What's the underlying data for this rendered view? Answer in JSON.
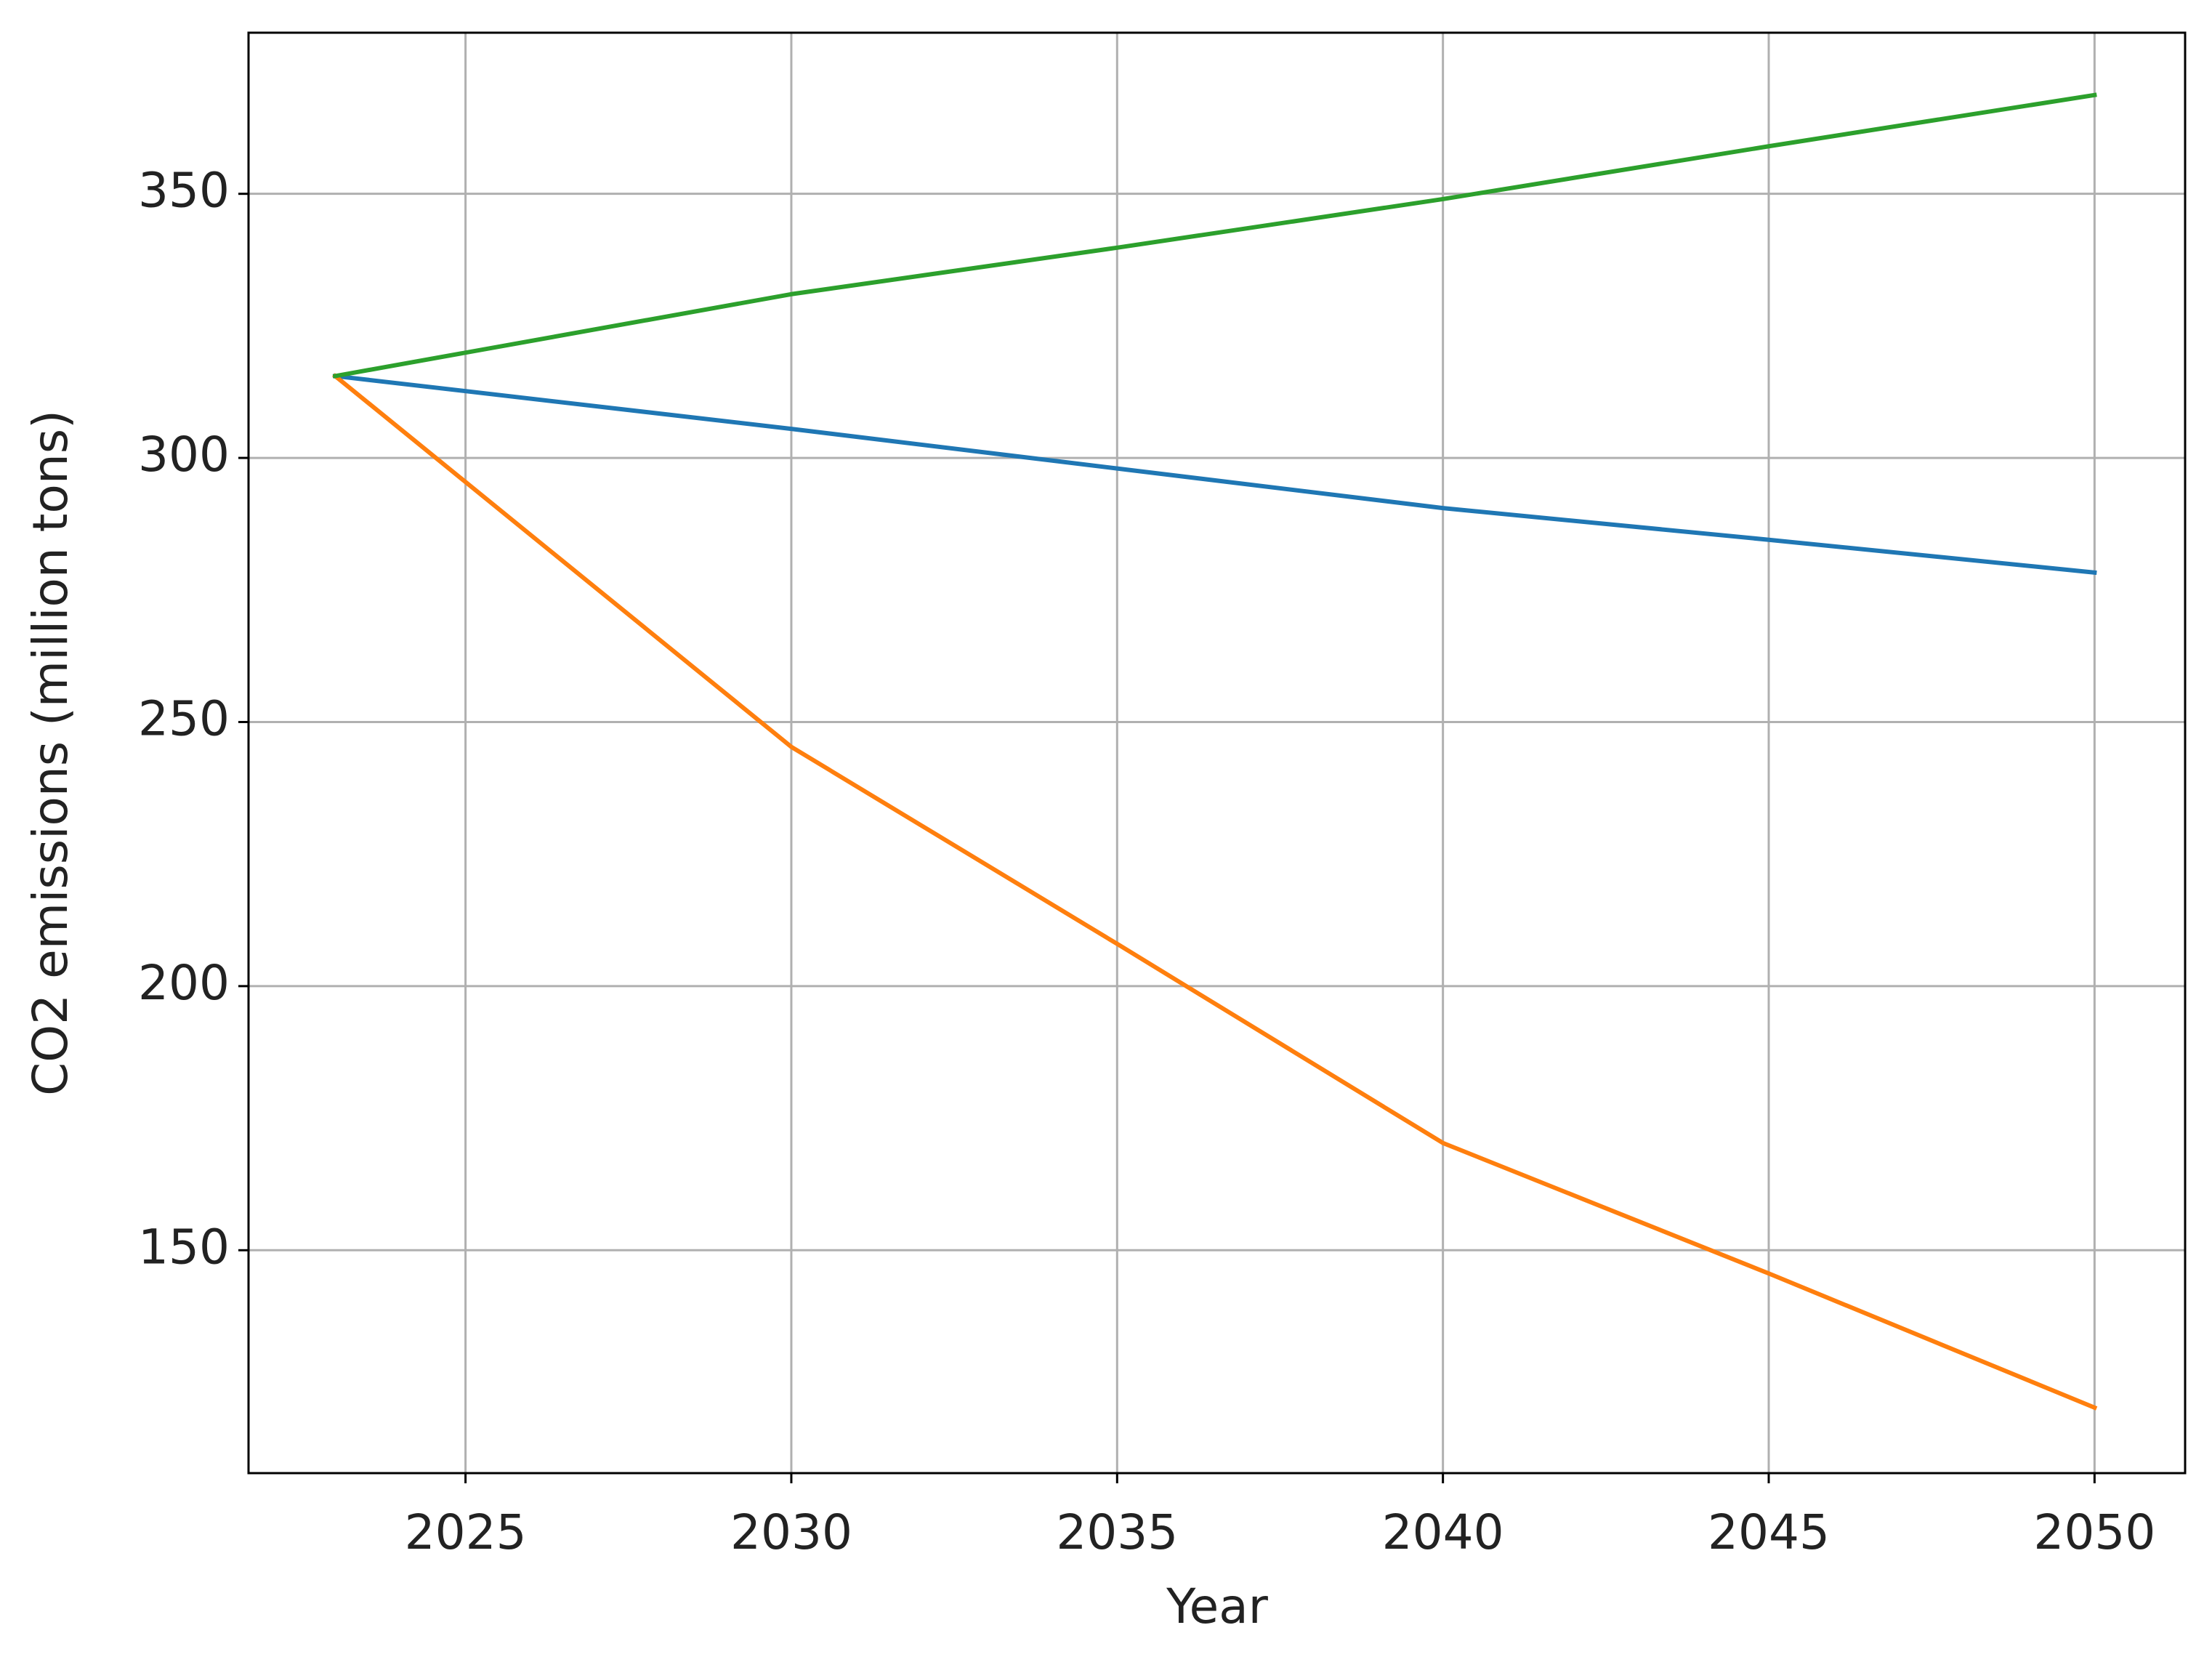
{
  "chart_data": {
    "type": "line",
    "x_label": "Year",
    "y_label": "CO2 emissions (million tons)",
    "x": [
      2023,
      2030,
      2035,
      2040,
      2045,
      2050
    ],
    "series": [
      {
        "color": "#1f77b4",
        "values": [
          315.5,
          305.5,
          298,
          290.5,
          284.5,
          278.3
        ]
      },
      {
        "color": "#ff7f0e",
        "values": [
          315.5,
          245.3,
          208,
          170.3,
          145.6,
          120.2
        ]
      },
      {
        "color": "#2ca02c",
        "values": [
          315.5,
          331,
          339.8,
          349,
          359,
          368.7
        ]
      }
    ],
    "xlim": [
      2021.67,
      2051.39
    ],
    "ylim": [
      107.8,
      380.5
    ],
    "xticks": [
      2025,
      2030,
      2035,
      2040,
      2045,
      2050
    ],
    "yticks": [
      150,
      200,
      250,
      300,
      350
    ],
    "grid": true
  }
}
